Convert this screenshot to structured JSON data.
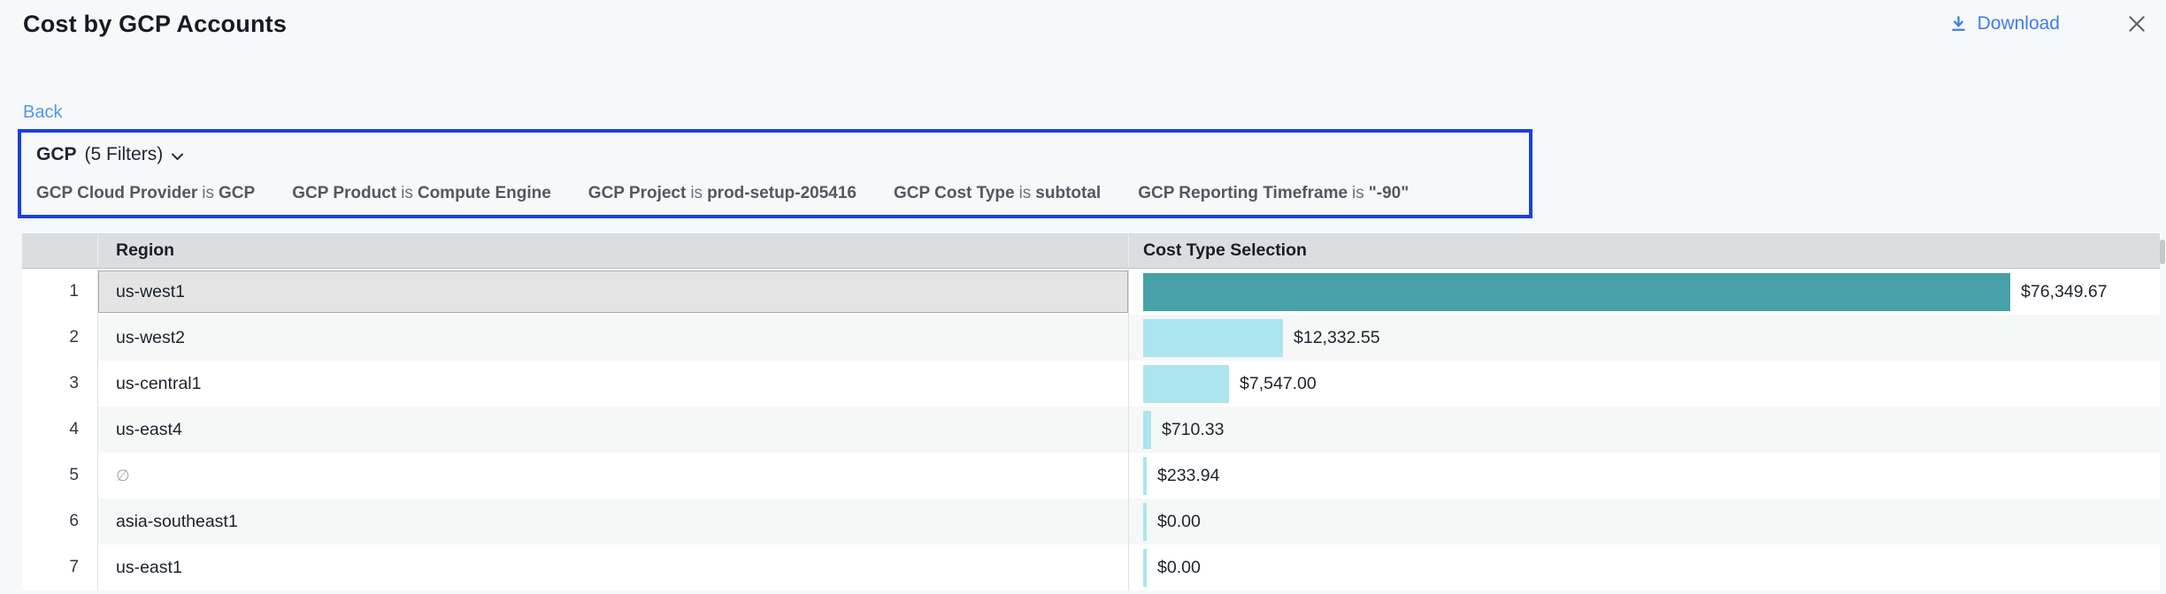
{
  "header": {
    "title": "Cost by GCP Accounts",
    "download_label": "Download"
  },
  "back_label": "Back",
  "filter_summary": {
    "name": "GCP",
    "count_label": "(5 Filters)"
  },
  "filters": [
    {
      "field": "GCP Cloud Provider",
      "op": "is",
      "value": "GCP"
    },
    {
      "field": "GCP Product",
      "op": "is",
      "value": "Compute Engine"
    },
    {
      "field": "GCP Project",
      "op": "is",
      "value": "prod-setup-205416"
    },
    {
      "field": "GCP Cost Type",
      "op": "is",
      "value": "subtotal"
    },
    {
      "field": "GCP Reporting Timeframe",
      "op": "is",
      "value": "\"-90\""
    }
  ],
  "table": {
    "columns": {
      "region": "Region",
      "cost": "Cost Type Selection"
    },
    "rows": [
      {
        "num": "1",
        "region": "us-west1",
        "value": 76349.67,
        "label": "$76,349.67",
        "selected": true
      },
      {
        "num": "2",
        "region": "us-west2",
        "value": 12332.55,
        "label": "$12,332.55"
      },
      {
        "num": "3",
        "region": "us-central1",
        "value": 7547.0,
        "label": "$7,547.00"
      },
      {
        "num": "4",
        "region": "us-east4",
        "value": 710.33,
        "label": "$710.33"
      },
      {
        "num": "5",
        "region": "∅",
        "value": 233.94,
        "label": "$233.94",
        "muted": true
      },
      {
        "num": "6",
        "region": "asia-southeast1",
        "value": 0,
        "label": "$0.00"
      },
      {
        "num": "7",
        "region": "us-east1",
        "value": 0,
        "label": "$0.00"
      }
    ]
  },
  "chart_data": {
    "type": "bar",
    "orientation": "horizontal",
    "categories": [
      "us-west1",
      "us-west2",
      "us-central1",
      "us-east4",
      "∅",
      "asia-southeast1",
      "us-east1"
    ],
    "values": [
      76349.67,
      12332.55,
      7547.0,
      710.33,
      233.94,
      0,
      0
    ],
    "value_labels": [
      "$76,349.67",
      "$12,332.55",
      "$7,547.00",
      "$710.33",
      "$233.94",
      "$0.00",
      "$0.00"
    ],
    "title": "Cost by GCP Accounts",
    "xlabel": "Cost Type Selection",
    "ylabel": "Region",
    "xlim": [
      0,
      76349.67
    ],
    "grid": false,
    "legend": "none"
  },
  "colors": {
    "accent_bar": "#46a1a9",
    "bar_light": "#abe5ee",
    "highlight_border": "#1c40e0",
    "link_blue": "#3d7ee8",
    "back_blue": "#5096f0",
    "header_bg": "#dcdde0",
    "selected_cell_bg": "#e4e4e5"
  }
}
